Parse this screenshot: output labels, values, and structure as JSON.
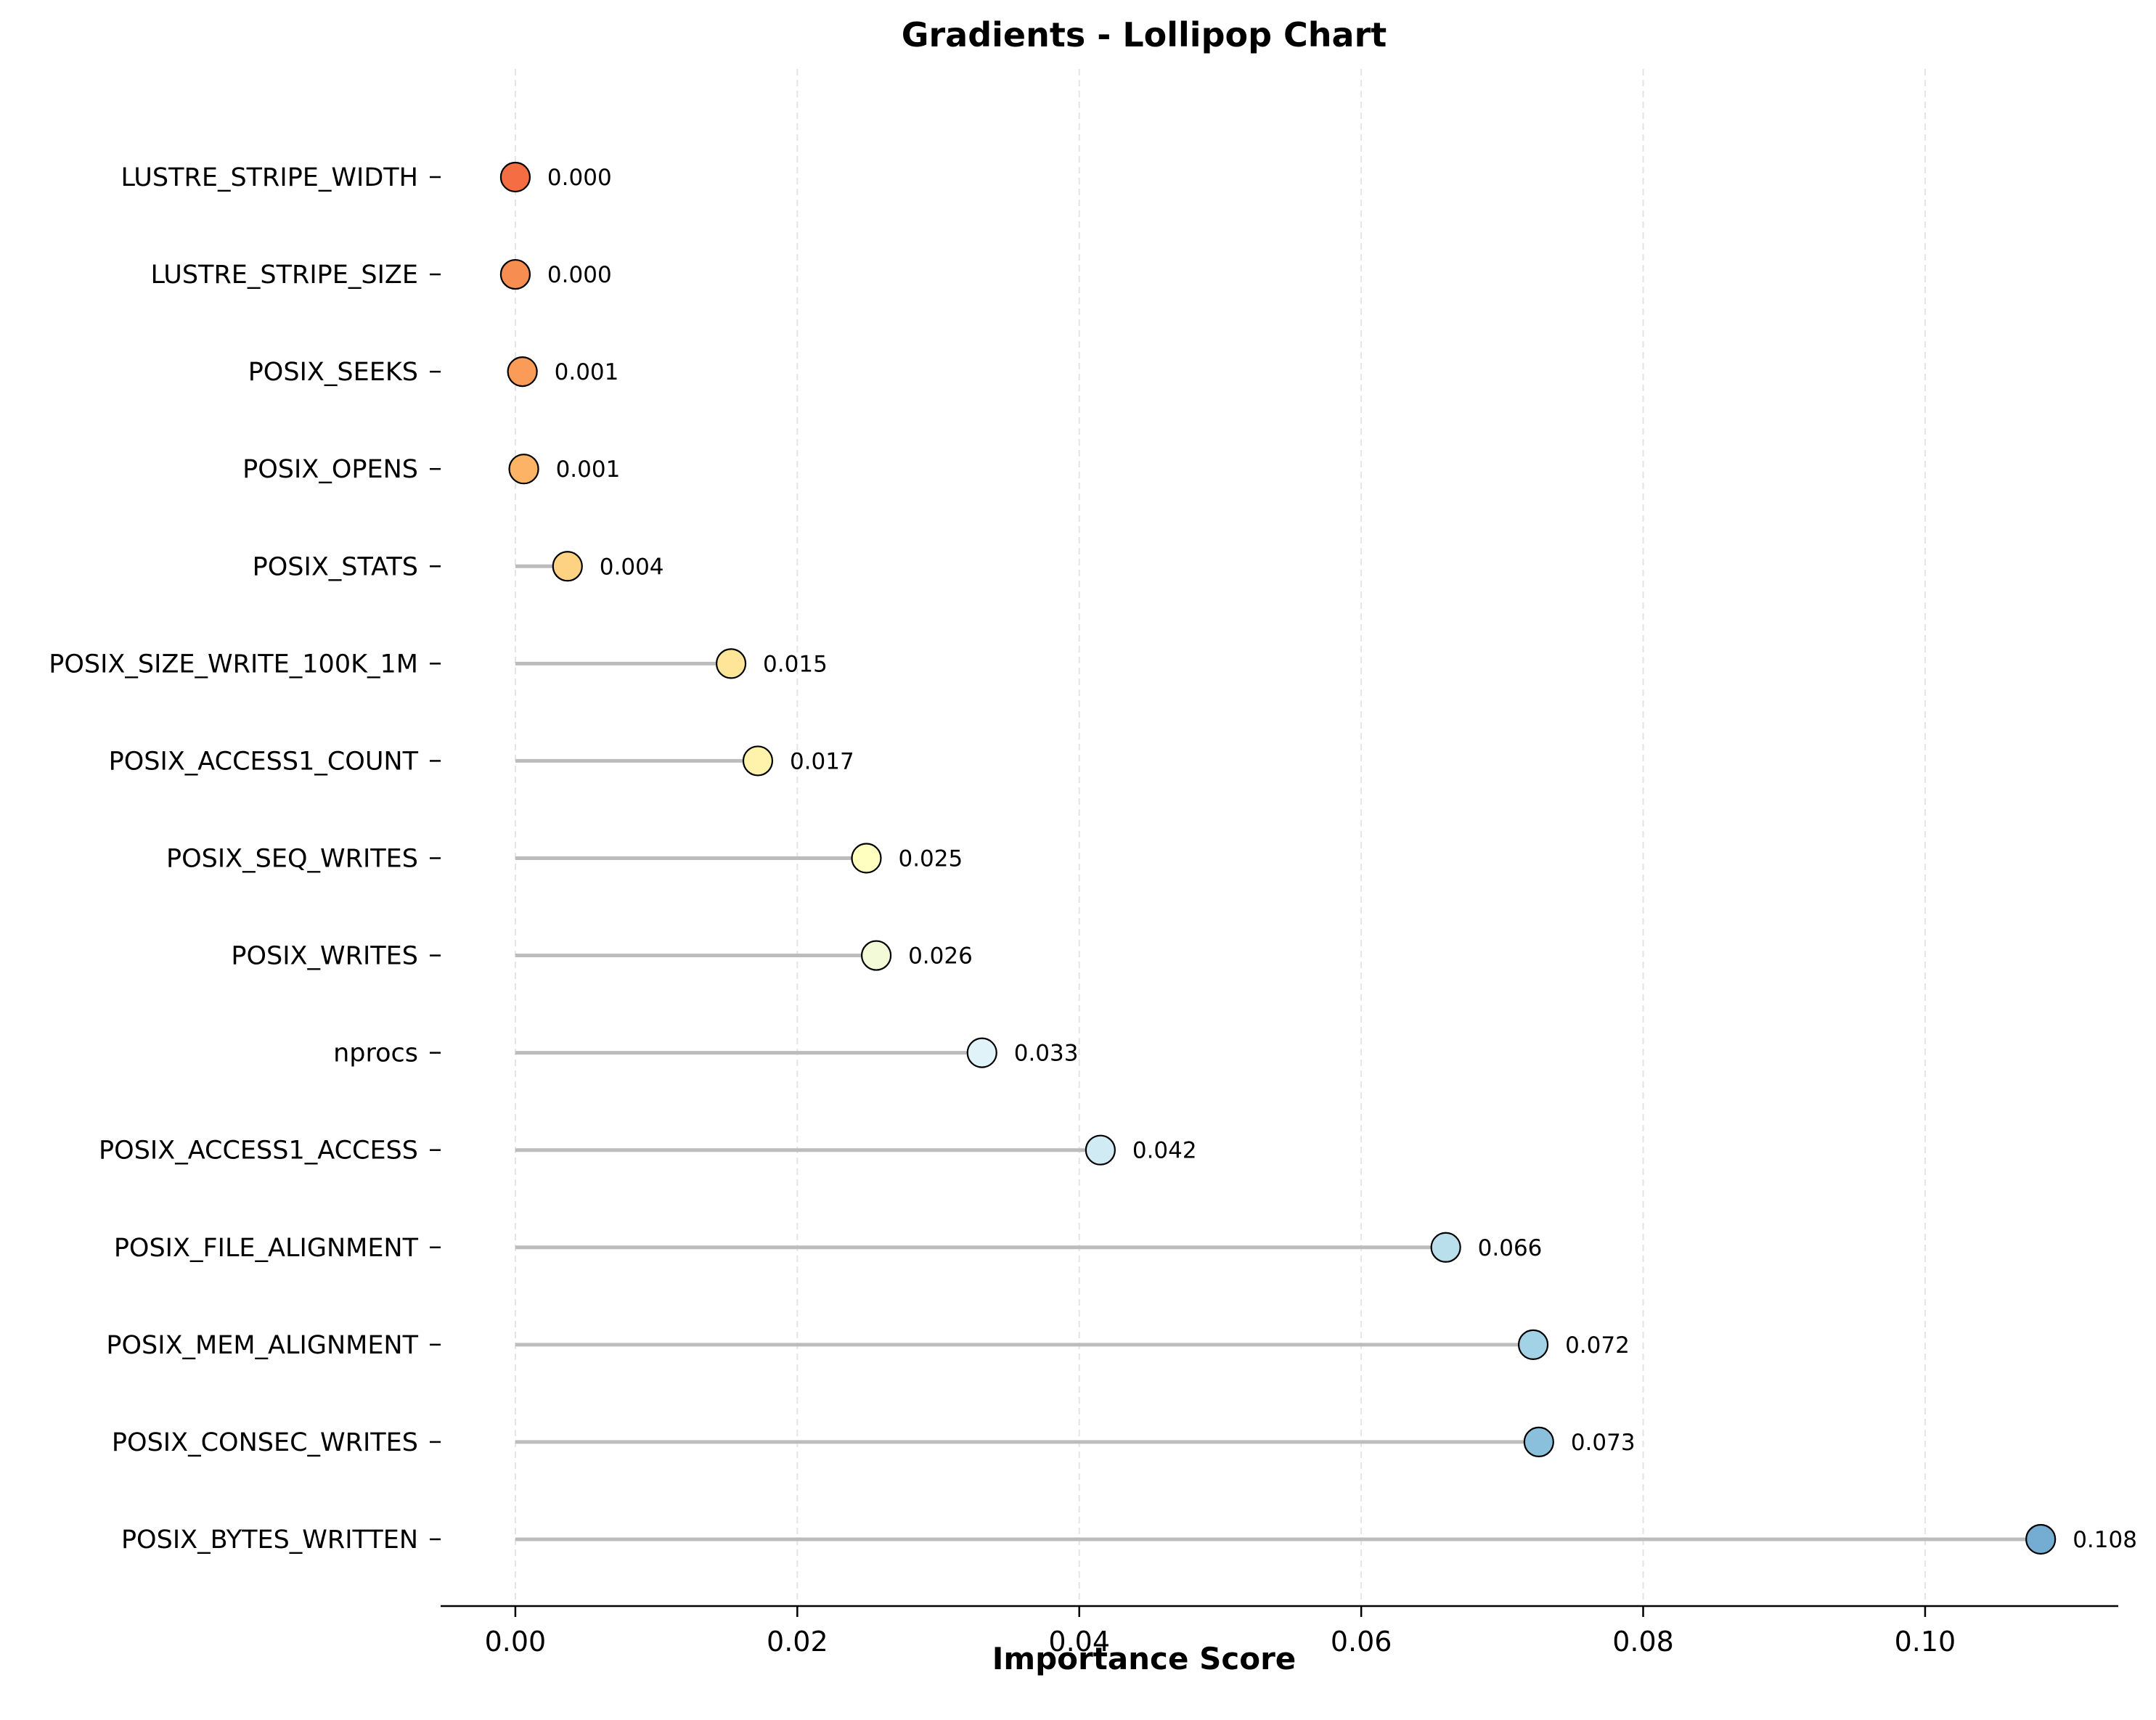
{
  "chart_data": {
    "type": "lollipop",
    "orientation": "horizontal",
    "title": "Gradients - Lollipop Chart",
    "xlabel": "Importance Score",
    "ylabel": "",
    "xlim": [
      -0.0053,
      0.1137
    ],
    "xticks": [
      0.0,
      0.02,
      0.04,
      0.06,
      0.08,
      0.1
    ],
    "xtick_labels": [
      "0.00",
      "0.02",
      "0.04",
      "0.06",
      "0.08",
      "0.10"
    ],
    "grid": "vertical dashed",
    "categories": [
      "LUSTRE_STRIPE_WIDTH",
      "LUSTRE_STRIPE_SIZE",
      "POSIX_SEEKS",
      "POSIX_OPENS",
      "POSIX_STATS",
      "POSIX_SIZE_WRITE_100K_1M",
      "POSIX_ACCESS1_COUNT",
      "POSIX_SEQ_WRITES",
      "POSIX_WRITES",
      "nprocs",
      "POSIX_ACCESS1_ACCESS",
      "POSIX_FILE_ALIGNMENT",
      "POSIX_MEM_ALIGNMENT",
      "POSIX_CONSEC_WRITES",
      "POSIX_BYTES_WRITTEN"
    ],
    "values": [
      0.0,
      0.0,
      0.0005,
      0.0006,
      0.0037,
      0.0153,
      0.0172,
      0.0249,
      0.0256,
      0.0331,
      0.0415,
      0.066,
      0.0722,
      0.0726,
      0.1082
    ],
    "value_labels": [
      "0.000",
      "0.000",
      "0.001",
      "0.001",
      "0.004",
      "0.015",
      "0.017",
      "0.025",
      "0.026",
      "0.033",
      "0.042",
      "0.066",
      "0.072",
      "0.073",
      "0.108"
    ],
    "colors": [
      "#f46d43",
      "#f88d52",
      "#fa9b58",
      "#fdb366",
      "#fed283",
      "#fee597",
      "#fff3ac",
      "#ffffbf",
      "#f2fad7",
      "#e0f3f8",
      "#d0ebf3",
      "#b8dfeb",
      "#a2d2e5",
      "#8bc0dd",
      "#74add1"
    ],
    "stem_color": "#bcbcbc",
    "marker_edge_color": "#000000"
  }
}
